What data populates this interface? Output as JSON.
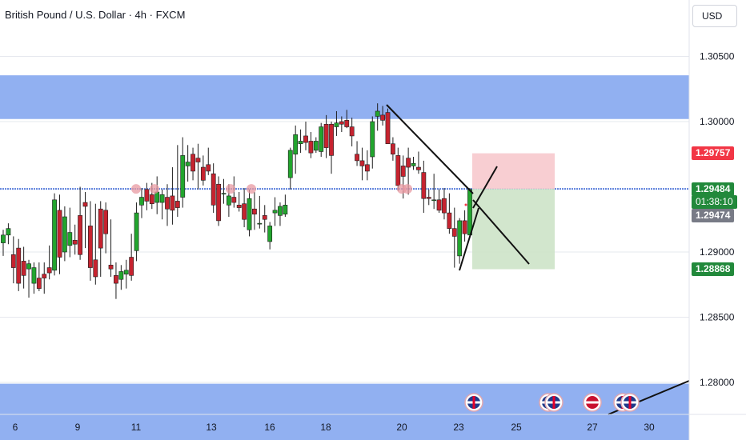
{
  "header": {
    "title": "British Pound / U.S. Dollar · 4h · FXCM",
    "currency_button": "USD"
  },
  "price_axis": {
    "ticks": [
      "1.30500",
      "1.30000",
      "1.28500",
      "1.28000"
    ],
    "tick_values": [
      1.305,
      1.3,
      1.285,
      1.28
    ],
    "extra_ticks": [
      "1.29000"
    ],
    "extra_values": [
      1.29
    ]
  },
  "price_tags": {
    "stop_loss": "1.29757",
    "last_price": "1.29484",
    "countdown": "01:38:10",
    "bid": "1.29474",
    "take_profit": "1.28868"
  },
  "time_axis": {
    "labels": [
      "6",
      "9",
      "11",
      "13",
      "16",
      "18",
      "20",
      "23",
      "25",
      "27",
      "30"
    ]
  },
  "colors": {
    "up": "#089981",
    "up_body": "#22a52e",
    "down": "#f23645",
    "down_body": "#c6232f",
    "zone": "#7ea2ee",
    "stop_zone": "#f7c9cd",
    "target_zone": "#cde3c8",
    "stop_tag": "#f23645",
    "price_tag": "#22893b",
    "bid_tag": "#787b86"
  },
  "zones": {
    "supply": {
      "from": 1.3002,
      "to": 1.30355
    },
    "demand": {
      "from": 1.275,
      "to": 1.2799
    },
    "level": 1.29484
  },
  "events": [
    "uk-flag-icon",
    "uk-flag-icon",
    "uk-flag-icon",
    "us-flag-icon",
    "uk-flag-icon",
    "uk-flag-icon"
  ],
  "chart_data": {
    "type": "candlestick",
    "symbol": "GBPUSD",
    "timeframe": "4h",
    "ylim": [
      1.2755,
      1.3095
    ],
    "candles": [
      [
        1.2907,
        1.2917,
        1.2897,
        1.2913
      ],
      [
        1.2913,
        1.2922,
        1.2906,
        1.2918
      ],
      [
        1.2898,
        1.2912,
        1.2876,
        1.2888
      ],
      [
        1.2903,
        1.291,
        1.287,
        1.2876
      ],
      [
        1.2893,
        1.2904,
        1.2872,
        1.2882
      ],
      [
        1.2887,
        1.2894,
        1.2865,
        1.2891
      ],
      [
        1.2876,
        1.2892,
        1.2868,
        1.2888
      ],
      [
        1.288,
        1.2892,
        1.287,
        1.2872
      ],
      [
        1.2883,
        1.2892,
        1.2868,
        1.288
      ],
      [
        1.2888,
        1.2905,
        1.2879,
        1.2884
      ],
      [
        1.2886,
        1.2945,
        1.2882,
        1.294
      ],
      [
        1.2932,
        1.2944,
        1.2883,
        1.2896
      ],
      [
        1.29,
        1.2935,
        1.2893,
        1.2927
      ],
      [
        1.2905,
        1.2934,
        1.2896,
        1.2915
      ],
      [
        1.2909,
        1.2921,
        1.2898,
        1.2906
      ],
      [
        1.2928,
        1.295,
        1.2894,
        1.2898
      ],
      [
        1.2938,
        1.2946,
        1.2903,
        1.2935
      ],
      [
        1.292,
        1.2939,
        1.2878,
        1.2888
      ],
      [
        1.2894,
        1.2937,
        1.2875,
        1.2881
      ],
      [
        1.2933,
        1.2939,
        1.2881,
        1.2903
      ],
      [
        1.2932,
        1.2938,
        1.2899,
        1.2914
      ],
      [
        1.289,
        1.2925,
        1.2881,
        1.2887
      ],
      [
        1.2882,
        1.2892,
        1.2864,
        1.2876
      ],
      [
        1.2879,
        1.289,
        1.2871,
        1.2885
      ],
      [
        1.2883,
        1.2894,
        1.2872,
        1.2886
      ],
      [
        1.2896,
        1.2914,
        1.2878,
        1.2882
      ],
      [
        1.2901,
        1.2938,
        1.2893,
        1.293
      ],
      [
        1.2936,
        1.2949,
        1.2926,
        1.2942
      ],
      [
        1.2948,
        1.2953,
        1.2932,
        1.2939
      ],
      [
        1.2944,
        1.2953,
        1.2933,
        1.2937
      ],
      [
        1.2938,
        1.2958,
        1.2929,
        1.2946
      ],
      [
        1.2938,
        1.2948,
        1.2925,
        1.2944
      ],
      [
        1.2942,
        1.2952,
        1.292,
        1.2933
      ],
      [
        1.2943,
        1.2965,
        1.2921,
        1.2932
      ],
      [
        1.2939,
        1.2982,
        1.2927,
        1.2934
      ],
      [
        1.2942,
        1.2988,
        1.2934,
        1.2974
      ],
      [
        1.2966,
        1.2982,
        1.2954,
        1.2969
      ],
      [
        1.2975,
        1.298,
        1.2955,
        1.2962
      ],
      [
        1.2972,
        1.2983,
        1.2948,
        1.2969
      ],
      [
        1.2965,
        1.2974,
        1.2951,
        1.2955
      ],
      [
        1.2967,
        1.298,
        1.2959,
        1.2962
      ],
      [
        1.296,
        1.2968,
        1.293,
        1.2936
      ],
      [
        1.2952,
        1.2958,
        1.292,
        1.2924
      ],
      [
        1.2945,
        1.2956,
        1.2937,
        1.2945
      ],
      [
        1.2936,
        1.2952,
        1.2927,
        1.2943
      ],
      [
        1.2942,
        1.2958,
        1.2934,
        1.2938
      ],
      [
        1.2936,
        1.2946,
        1.2931,
        1.2934
      ],
      [
        1.2937,
        1.2949,
        1.2919,
        1.2925
      ],
      [
        1.2917,
        1.2948,
        1.2912,
        1.2941
      ],
      [
        1.2933,
        1.2946,
        1.2917,
        1.2929
      ],
      [
        1.2922,
        1.2943,
        1.2918,
        1.2922
      ],
      [
        1.2928,
        1.2936,
        1.2915,
        1.2925
      ],
      [
        1.2908,
        1.2923,
        1.2902,
        1.292
      ],
      [
        1.293,
        1.2942,
        1.292,
        1.2932
      ],
      [
        1.2928,
        1.2938,
        1.292,
        1.2935
      ],
      [
        1.2929,
        1.2944,
        1.2927,
        1.2936
      ],
      [
        1.2957,
        1.298,
        1.2948,
        1.2978
      ],
      [
        1.2975,
        1.2997,
        1.296,
        1.299
      ],
      [
        1.2983,
        1.2994,
        1.2976,
        1.2985
      ],
      [
        1.2989,
        1.3,
        1.2978,
        1.2984
      ],
      [
        1.2985,
        1.2992,
        1.2972,
        1.2976
      ],
      [
        1.2978,
        1.2988,
        1.2976,
        1.2985
      ],
      [
        1.2977,
        1.2999,
        1.2973,
        1.2996
      ],
      [
        1.2998,
        1.3005,
        1.2972,
        1.298
      ],
      [
        1.2998,
        1.3,
        1.296,
        1.2974
      ],
      [
        1.2996,
        1.3008,
        1.2989,
        1.2999
      ],
      [
        1.3,
        1.3004,
        1.2992,
        1.2998
      ],
      [
        1.3001,
        1.3009,
        1.2995,
        1.2996
      ],
      [
        1.2996,
        1.3003,
        1.2981,
        1.2989
      ],
      [
        1.2975,
        1.2985,
        1.2966,
        1.297
      ],
      [
        1.297,
        1.298,
        1.2955,
        1.2966
      ],
      [
        1.2967,
        1.2978,
        1.2955,
        1.2962
      ],
      [
        1.2973,
        1.3004,
        1.2964,
        1.3
      ],
      [
        1.3004,
        1.3014,
        1.2993,
        1.3008
      ],
      [
        1.3005,
        1.3012,
        1.2997,
        1.3001
      ],
      [
        1.3007,
        1.301,
        1.2985,
        1.2983
      ],
      [
        1.2983,
        1.2988,
        1.297,
        1.2975
      ],
      [
        1.2974,
        1.298,
        1.2947,
        1.2951
      ],
      [
        1.2966,
        1.2974,
        1.2941,
        1.2958
      ],
      [
        1.2972,
        1.298,
        1.2944,
        1.2965
      ],
      [
        1.2966,
        1.2973,
        1.2963,
        1.2968
      ],
      [
        1.2965,
        1.2977,
        1.296,
        1.2963
      ],
      [
        1.2961,
        1.297,
        1.293,
        1.2941
      ],
      [
        1.2942,
        1.2948,
        1.2936,
        1.2941
      ],
      [
        1.294,
        1.296,
        1.2933,
        1.294
      ],
      [
        1.294,
        1.2948,
        1.293,
        1.2932
      ],
      [
        1.2941,
        1.2949,
        1.2925,
        1.293
      ],
      [
        1.293,
        1.2945,
        1.2914,
        1.2918
      ],
      [
        1.2918,
        1.2934,
        1.2888,
        1.2912
      ],
      [
        1.2897,
        1.2926,
        1.2891,
        1.2924
      ],
      [
        1.2924,
        1.2932,
        1.2908,
        1.2914
      ],
      [
        1.2913,
        1.2949,
        1.2911,
        1.2948
      ]
    ],
    "trade": {
      "entry": 1.29484,
      "stop": 1.29757,
      "target": 1.28868
    }
  }
}
